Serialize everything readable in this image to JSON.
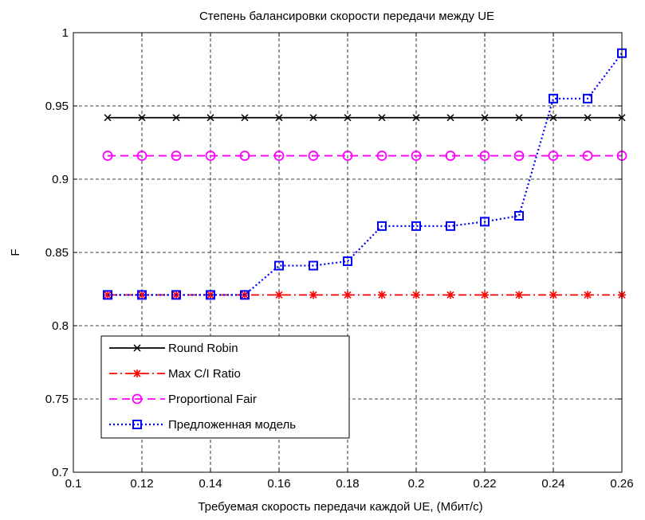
{
  "chart_data": {
    "type": "line",
    "title": "Степень балансировки скорости передачи между UE",
    "xlabel": "Требуемая скорость передачи каждой UE, (Мбит/с)",
    "ylabel": "F",
    "xlim": [
      0.1,
      0.26
    ],
    "ylim": [
      0.7,
      1.0
    ],
    "xticks": [
      0.1,
      0.12,
      0.14,
      0.16,
      0.18,
      0.2,
      0.22,
      0.24,
      0.26
    ],
    "xtick_labels": [
      "0.1",
      "0.12",
      "0.14",
      "0.16",
      "0.18",
      "0.2",
      "0.22",
      "0.24",
      "0.26"
    ],
    "yticks": [
      0.7,
      0.75,
      0.8,
      0.85,
      0.9,
      0.95,
      1.0
    ],
    "ytick_labels": [
      "0.7",
      "0.75",
      "0.8",
      "0.85",
      "0.9",
      "0.95",
      "1"
    ],
    "grid": true,
    "legend_position": "bottom-left",
    "x": [
      0.11,
      0.12,
      0.13,
      0.14,
      0.15,
      0.16,
      0.17,
      0.18,
      0.19,
      0.2,
      0.21,
      0.22,
      0.23,
      0.24,
      0.25,
      0.26
    ],
    "series": [
      {
        "name": "Round Robin",
        "color": "#000000",
        "line_style": "solid",
        "marker": "x",
        "values": [
          0.942,
          0.942,
          0.942,
          0.942,
          0.942,
          0.942,
          0.942,
          0.942,
          0.942,
          0.942,
          0.942,
          0.942,
          0.942,
          0.942,
          0.942,
          0.942
        ]
      },
      {
        "name": "Max C/I Ratio",
        "color": "#ff0000",
        "line_style": "dashdot",
        "marker": "asterisk",
        "values": [
          0.821,
          0.821,
          0.821,
          0.821,
          0.821,
          0.821,
          0.821,
          0.821,
          0.821,
          0.821,
          0.821,
          0.821,
          0.821,
          0.821,
          0.821,
          0.821
        ]
      },
      {
        "name": "Proportional Fair",
        "color": "#ff00ff",
        "line_style": "dashed",
        "marker": "circle",
        "values": [
          0.916,
          0.916,
          0.916,
          0.916,
          0.916,
          0.916,
          0.916,
          0.916,
          0.916,
          0.916,
          0.916,
          0.916,
          0.916,
          0.916,
          0.916,
          0.916
        ]
      },
      {
        "name": "Предложенная модель",
        "color": "#0000ff",
        "line_style": "dotted",
        "marker": "square",
        "values": [
          0.821,
          0.821,
          0.821,
          0.821,
          0.821,
          0.841,
          0.841,
          0.844,
          0.868,
          0.868,
          0.868,
          0.871,
          0.875,
          0.955,
          0.955,
          0.986
        ]
      }
    ]
  }
}
